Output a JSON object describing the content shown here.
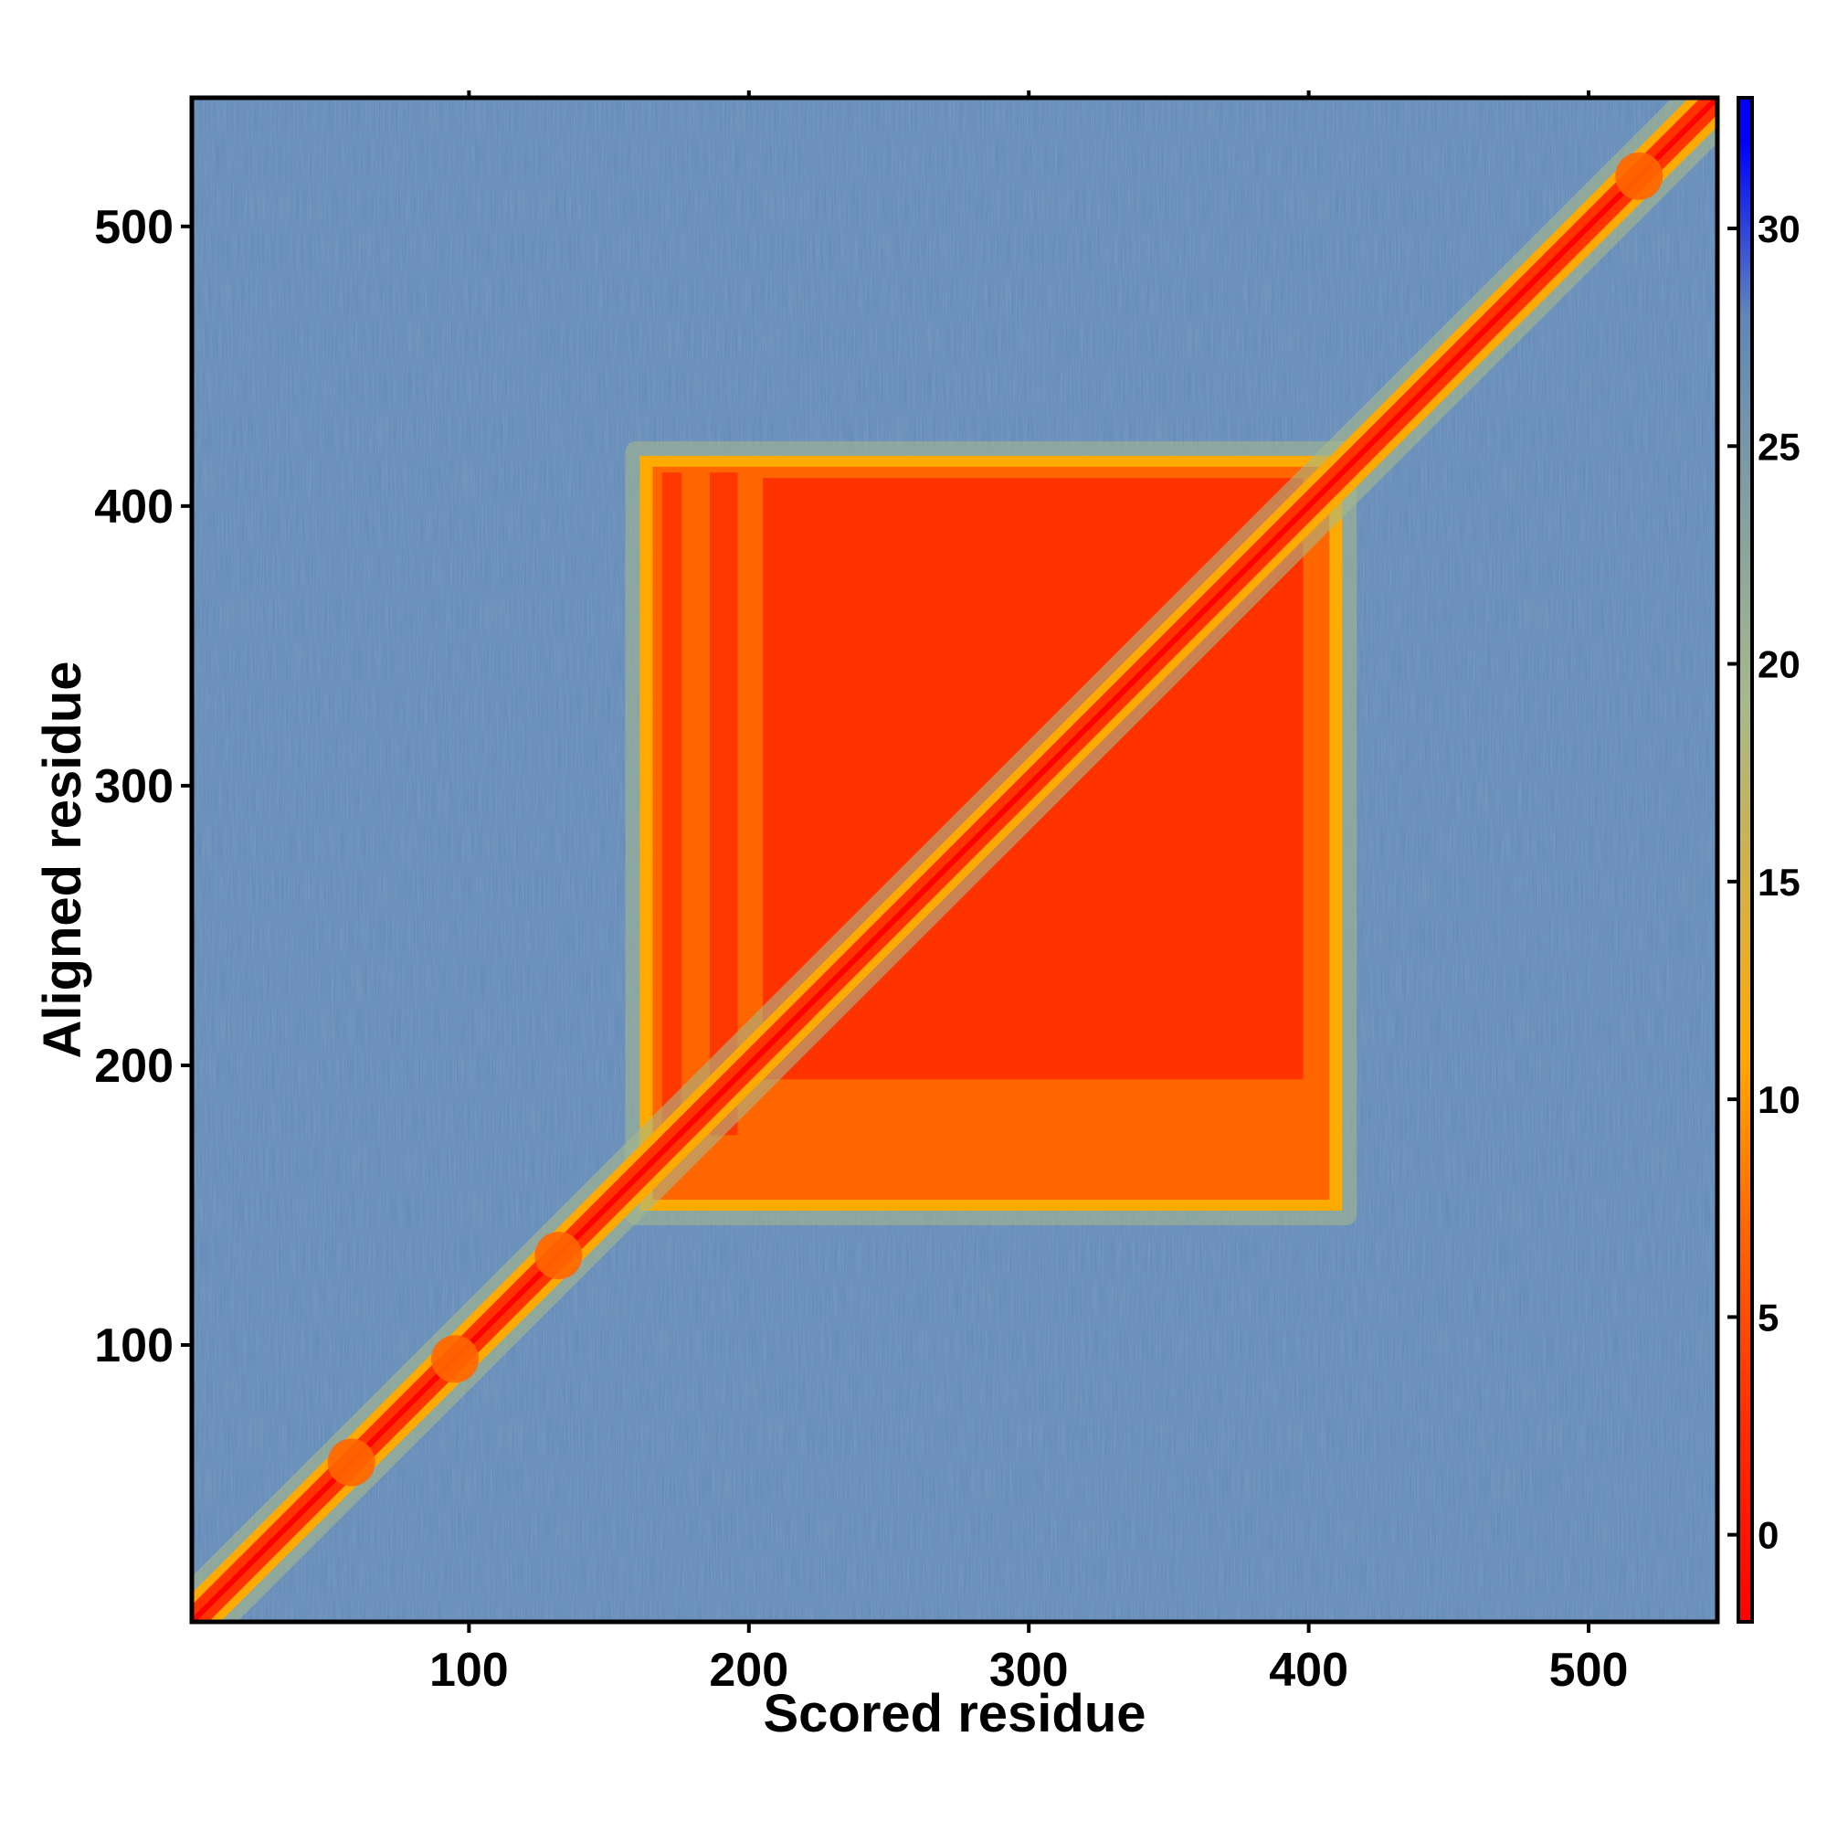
{
  "chart_data": {
    "type": "heatmap",
    "title": "",
    "xlabel": "Scored residue",
    "ylabel": "Aligned residue",
    "xlim": [
      1,
      546
    ],
    "ylim": [
      1,
      546
    ],
    "xticks": [
      100,
      200,
      300,
      400,
      500
    ],
    "yticks": [
      100,
      200,
      300,
      400,
      500
    ],
    "xtick_labels": [
      "100",
      "200",
      "300",
      "400",
      "500"
    ],
    "ytick_labels": [
      "100",
      "200",
      "300",
      "400",
      "500"
    ],
    "grid": false,
    "legend": "none",
    "colorbar": {
      "position": "right",
      "range": [
        -2,
        33
      ],
      "ticks": [
        0,
        5,
        10,
        15,
        20,
        25,
        30
      ],
      "tick_labels": [
        "0",
        "5",
        "10",
        "15",
        "20",
        "25",
        "30"
      ],
      "colors": [
        "#ff0000",
        "#ff3300",
        "#ff6600",
        "#ffaa00",
        "#a8b98a",
        "#5f87b8",
        "#0000ff"
      ]
    },
    "features": [
      {
        "name": "diagonal",
        "x_range": [
          1,
          546
        ],
        "value": 0
      },
      {
        "name": "low-error block",
        "x_range": [
          163,
          410
        ],
        "y_range": [
          150,
          416
        ],
        "value": 2
      },
      {
        "name": "background",
        "value": 28
      }
    ]
  }
}
